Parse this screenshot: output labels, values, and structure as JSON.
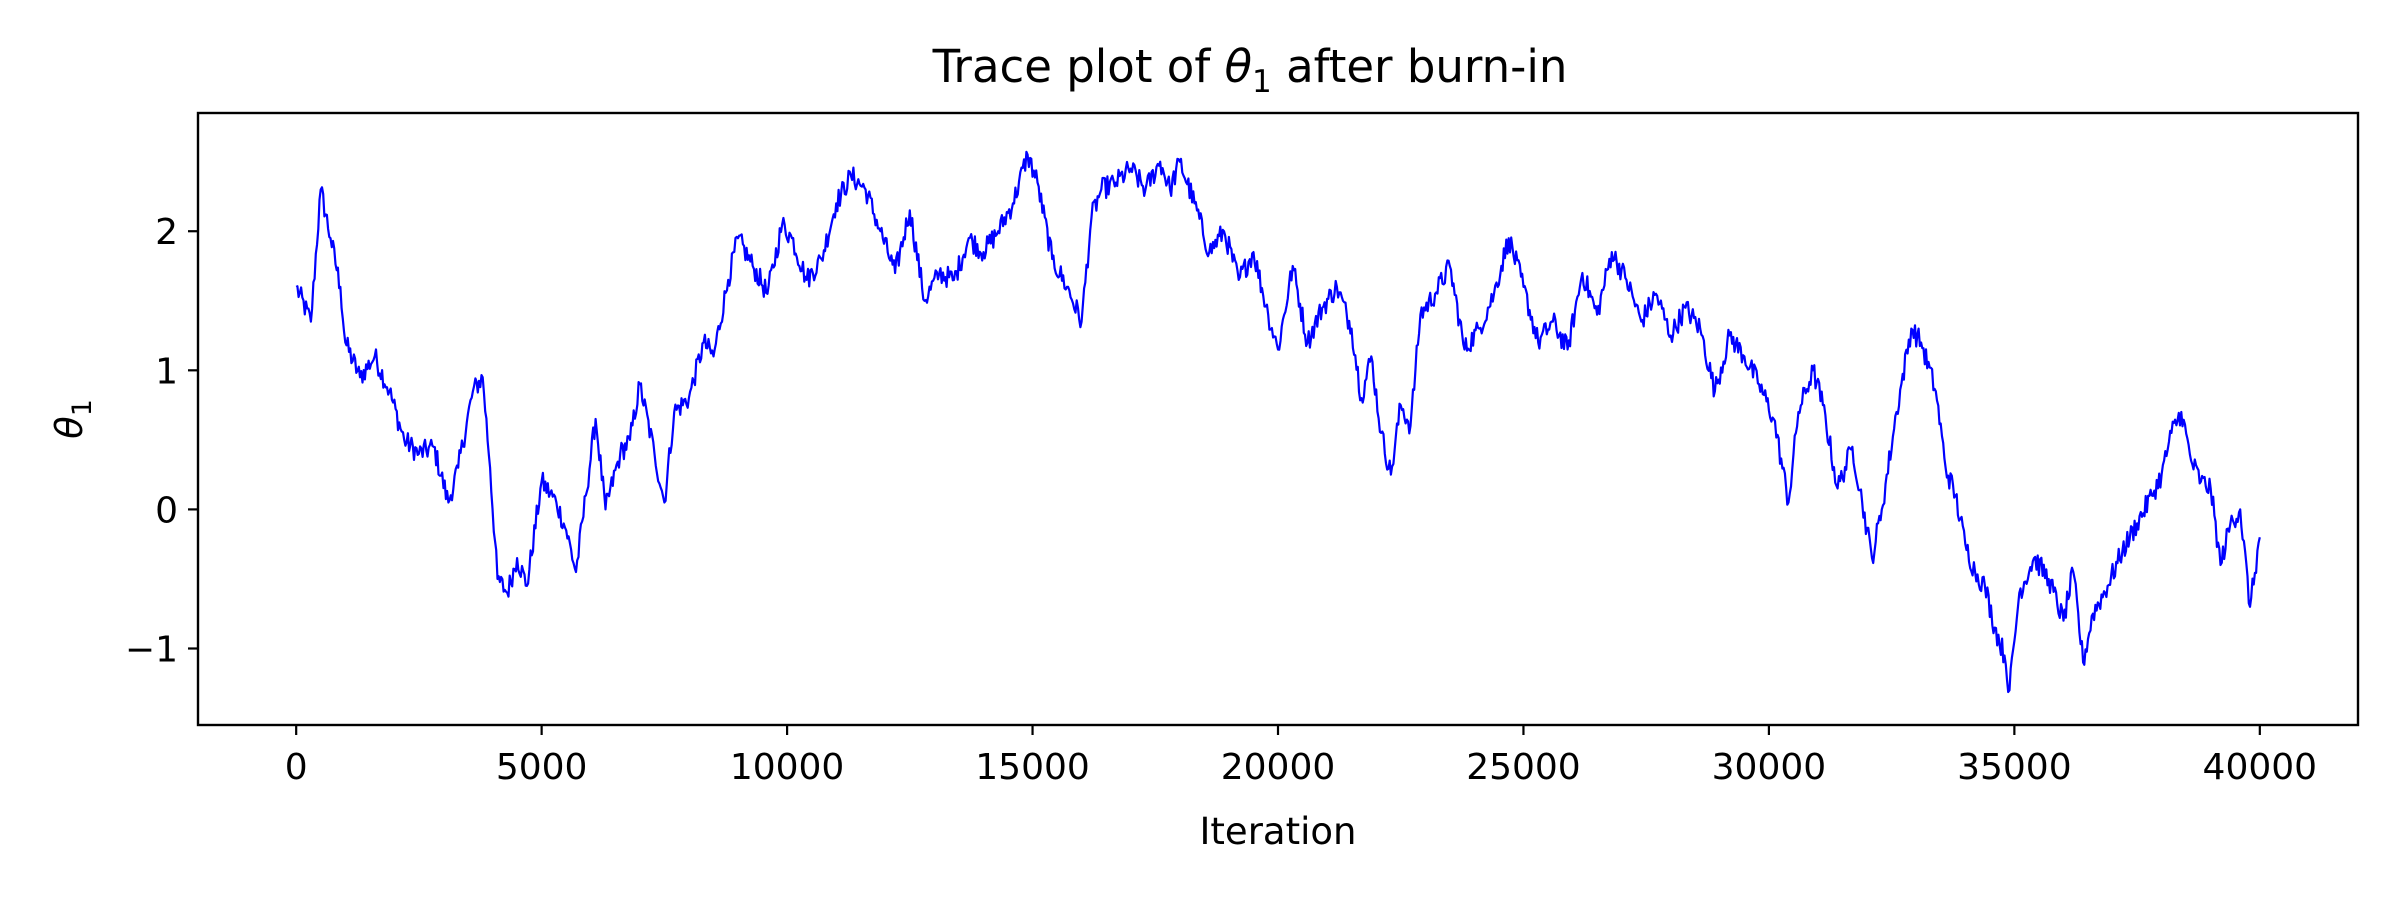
{
  "chart_data": {
    "type": "line",
    "title": "Trace plot of θ₁ after burn-in",
    "title_parts": {
      "pre": "Trace plot of ",
      "sym": "θ",
      "sub": "1",
      "post": " after burn-in"
    },
    "xlabel": "Iteration",
    "ylabel_parts": {
      "sym": "θ",
      "sub": "1"
    },
    "xlim": [
      -2000,
      42000
    ],
    "ylim": [
      -1.55,
      2.85
    ],
    "xticks": [
      0,
      5000,
      10000,
      15000,
      20000,
      25000,
      30000,
      35000,
      40000
    ],
    "xtick_labels": [
      "0",
      "5000",
      "10000",
      "15000",
      "20000",
      "25000",
      "30000",
      "35000",
      "40000"
    ],
    "yticks": [
      -1,
      0,
      1,
      2
    ],
    "ytick_labels": [
      "−1",
      "0",
      "1",
      "2"
    ],
    "grid": false,
    "legend": "none",
    "colors": {
      "line": "#0000ff",
      "axes": "#000000",
      "background": "#ffffff"
    },
    "series": [
      {
        "x": [
          0,
          300,
          500,
          700,
          900,
          1000,
          1300,
          1600,
          1900,
          2200,
          2500,
          2800,
          3100,
          3300,
          3600,
          3800,
          3950,
          4100,
          4300,
          4500,
          4700,
          5000,
          5300,
          5500,
          5700,
          5900,
          6100,
          6300,
          6600,
          6800,
          7000,
          7300,
          7500,
          7700,
          8000,
          8300,
          8500,
          8800,
          9000,
          9300,
          9600,
          9900,
          10100,
          10400,
          10700,
          11000,
          11300,
          11600,
          11900,
          12200,
          12500,
          12800,
          13100,
          13400,
          13700,
          14000,
          14300,
          14600,
          14900,
          15100,
          15400,
          15700,
          16000,
          16200,
          16400,
          16700,
          17000,
          17300,
          17600,
          17800,
          18000,
          18300,
          18600,
          18900,
          19200,
          19500,
          19800,
          20000,
          20300,
          20600,
          20900,
          21200,
          21500,
          21700,
          21900,
          22100,
          22300,
          22500,
          22700,
          22900,
          23200,
          23500,
          23800,
          24100,
          24400,
          24700,
          25000,
          25300,
          25600,
          25900,
          26200,
          26500,
          26800,
          27100,
          27400,
          27700,
          28000,
          28300,
          28600,
          28900,
          29200,
          29500,
          29800,
          30100,
          30400,
          30600,
          30900,
          31100,
          31400,
          31700,
          31900,
          32100,
          32300,
          32600,
          32900,
          33100,
          33400,
          33600,
          33800,
          34000,
          34200,
          34400,
          34600,
          34800,
          34900,
          35100,
          35400,
          35700,
          36000,
          36200,
          36400,
          36600,
          36900,
          37200,
          37500,
          37800,
          38000,
          38200,
          38400,
          38600,
          38800,
          39000,
          39200,
          39400,
          39600,
          39800,
          40000
        ],
        "values": [
          1.6,
          1.35,
          2.3,
          1.95,
          1.6,
          1.2,
          0.95,
          1.1,
          0.85,
          0.5,
          0.4,
          0.45,
          0.05,
          0.3,
          0.85,
          0.95,
          0.3,
          -0.5,
          -0.6,
          -0.35,
          -0.55,
          0.2,
          0.05,
          -0.15,
          -0.45,
          0.1,
          0.65,
          0.0,
          0.4,
          0.5,
          0.9,
          0.4,
          0.05,
          0.7,
          0.8,
          1.2,
          1.1,
          1.65,
          1.95,
          1.75,
          1.55,
          2.05,
          1.95,
          1.65,
          1.8,
          2.2,
          2.4,
          2.3,
          2.0,
          1.7,
          2.15,
          1.5,
          1.7,
          1.65,
          1.95,
          1.85,
          2.0,
          2.2,
          2.55,
          2.35,
          1.8,
          1.6,
          1.35,
          2.1,
          2.3,
          2.35,
          2.45,
          2.3,
          2.5,
          2.3,
          2.5,
          2.2,
          1.85,
          2.0,
          1.65,
          1.85,
          1.4,
          1.15,
          1.75,
          1.2,
          1.45,
          1.6,
          1.3,
          0.8,
          1.1,
          0.55,
          0.25,
          0.75,
          0.6,
          1.4,
          1.55,
          1.75,
          1.15,
          1.3,
          1.55,
          1.95,
          1.6,
          1.2,
          1.35,
          1.15,
          1.7,
          1.4,
          1.85,
          1.65,
          1.35,
          1.55,
          1.25,
          1.45,
          1.3,
          0.85,
          1.25,
          1.1,
          0.9,
          0.65,
          0.05,
          0.7,
          1.0,
          0.75,
          0.15,
          0.45,
          0.05,
          -0.35,
          0.0,
          0.7,
          1.3,
          1.2,
          0.85,
          0.3,
          0.1,
          -0.25,
          -0.45,
          -0.55,
          -0.85,
          -1.05,
          -1.3,
          -0.6,
          -0.35,
          -0.5,
          -0.8,
          -0.45,
          -1.1,
          -0.75,
          -0.55,
          -0.3,
          -0.1,
          0.1,
          0.25,
          0.55,
          0.7,
          0.35,
          0.2,
          0.15,
          -0.4,
          -0.1,
          0.0,
          -0.7,
          -0.2
        ]
      }
    ]
  }
}
